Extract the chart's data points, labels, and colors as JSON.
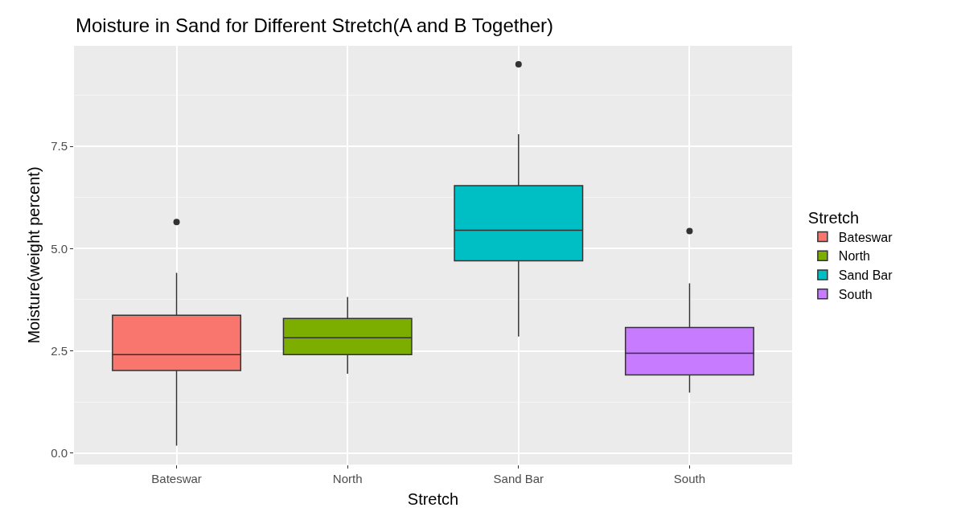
{
  "chart_data": {
    "type": "box",
    "title": "Moisture in Sand for Different Stretch(A and B Together)",
    "xlabel": "Stretch",
    "ylabel": "Moisture(weight percent)",
    "legend_title": "Stretch",
    "categories": [
      "Bateswar",
      "North",
      "Sand Bar",
      "South"
    ],
    "series": [
      {
        "name": "Bateswar",
        "color": "#f8766d",
        "boxes": [
          {
            "low": 0.18,
            "q1": 2.02,
            "median": 2.41,
            "q3": 3.37,
            "high": 4.41,
            "outliers": [
              5.65
            ]
          },
          null,
          null,
          null
        ]
      },
      {
        "name": "North",
        "color": "#7cae00",
        "boxes": [
          null,
          {
            "low": 1.94,
            "q1": 2.41,
            "median": 2.82,
            "q3": 3.29,
            "high": 3.82
          },
          null,
          null
        ]
      },
      {
        "name": "Sand Bar",
        "color": "#00bfc4",
        "boxes": [
          null,
          null,
          {
            "low": 2.85,
            "q1": 4.7,
            "median": 5.45,
            "q3": 6.54,
            "high": 7.8,
            "outliers": [
              9.51
            ]
          },
          null
        ]
      },
      {
        "name": "South",
        "color": "#c77cff",
        "boxes": [
          null,
          null,
          null,
          {
            "low": 1.48,
            "q1": 1.91,
            "median": 2.44,
            "q3": 3.07,
            "high": 4.15,
            "outliers": [
              5.43
            ]
          }
        ]
      }
    ],
    "ylim": [
      -0.28,
      9.96
    ],
    "yticks": [
      {
        "value": 0,
        "label": "0.0"
      },
      {
        "value": 2.5,
        "label": "2.5"
      },
      {
        "value": 5,
        "label": "5.0"
      },
      {
        "value": 7.5,
        "label": "7.5"
      }
    ],
    "grid": true,
    "legend": "right"
  }
}
